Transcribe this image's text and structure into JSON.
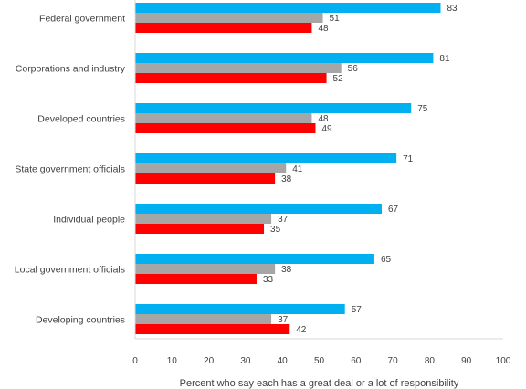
{
  "chart_data": {
    "type": "bar",
    "orientation": "horizontal",
    "categories": [
      "Federal government",
      "Corporations and industry",
      "Developed countries",
      "State government officials",
      "Individual people",
      "Local government officials",
      "Developing countries"
    ],
    "series": [
      {
        "color": "#00b0f0",
        "values": [
          83,
          81,
          75,
          71,
          67,
          65,
          57
        ]
      },
      {
        "color": "#a6a6a6",
        "values": [
          51,
          56,
          48,
          41,
          37,
          38,
          37
        ]
      },
      {
        "color": "#ff0000",
        "values": [
          48,
          52,
          49,
          38,
          35,
          33,
          42
        ]
      }
    ],
    "xlabel": "Percent who say each has a great deal or a lot of responsibility",
    "xlim": [
      0,
      100
    ],
    "xticks": [
      "0",
      "10",
      "20",
      "30",
      "40",
      "50",
      "60",
      "70",
      "80",
      "90",
      "100"
    ],
    "grid": false,
    "legend": "none"
  }
}
